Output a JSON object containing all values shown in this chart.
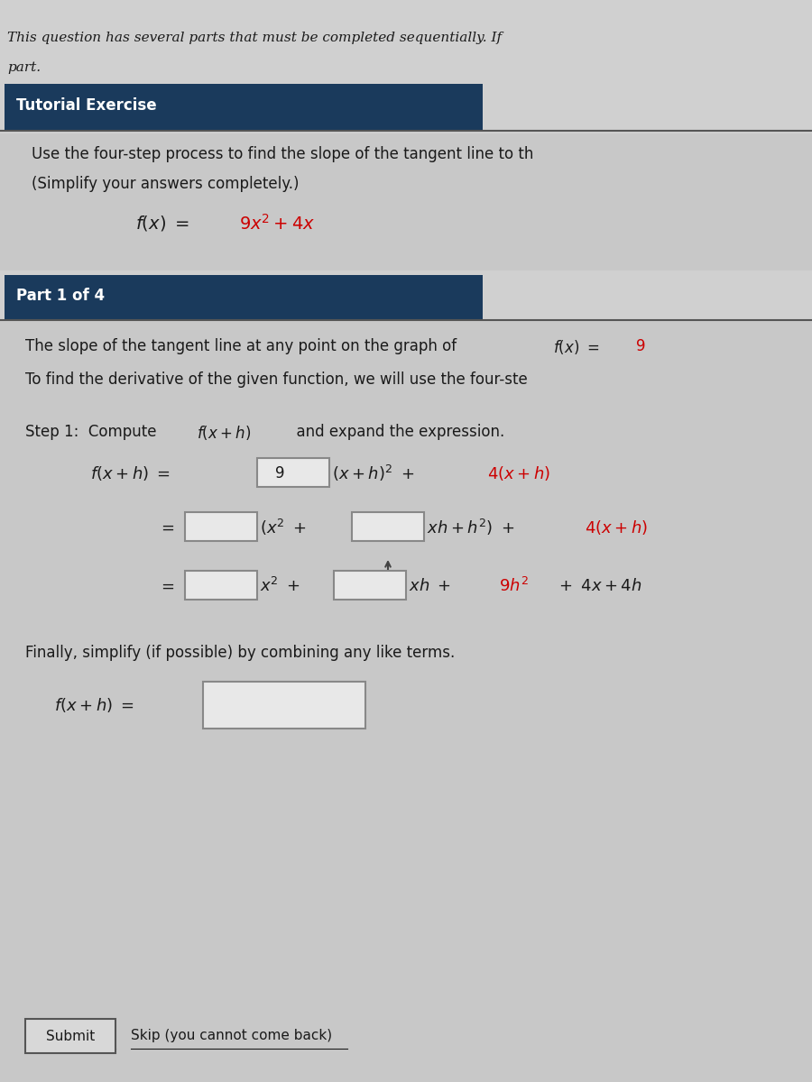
{
  "bg_color": "#d0d0d0",
  "content_bg": "#c8c8c8",
  "header_bg": "#1a3a5c",
  "header_text_color": "#ffffff",
  "body_text_color": "#1a1a1a",
  "red_color": "#cc0000",
  "input_box_color": "#e8e8e8",
  "input_box_border": "#888888",
  "line1": "This question has several parts that must be completed sequentially. If",
  "line2": "part.",
  "tutorial_header": "Tutorial Exercise",
  "exercise_line1": "Use the four-step process to find the slope of the tangent line to th",
  "exercise_line2": "(Simplify your answers completely.)",
  "part_header": "Part 1 of 4",
  "part_line1": "The slope of the tangent line at any point on the graph of  f(x) = 9",
  "part_line2": "To find the derivative of the given function, we will use the four-ste",
  "step1_label": "Step 1: Compute  f(x + h)  and expand the expression.",
  "submit_label": "Submit",
  "skip_label": "Skip (you cannot come back)"
}
